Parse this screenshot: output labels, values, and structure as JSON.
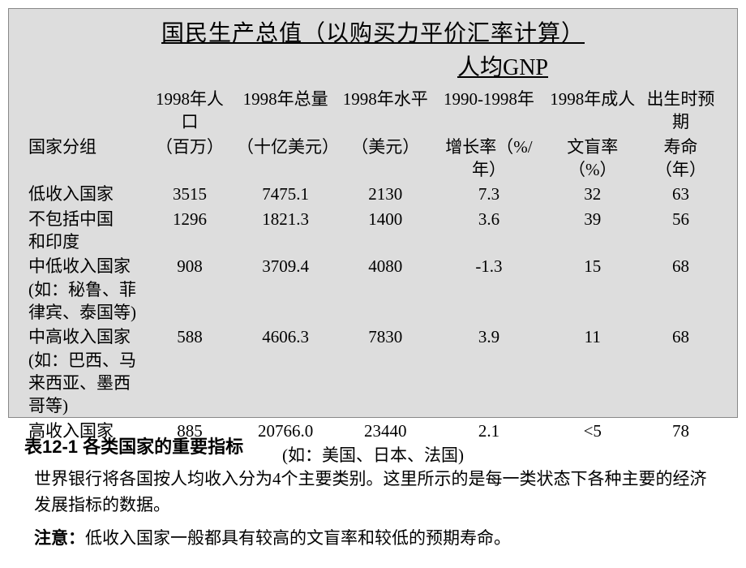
{
  "title": "国民生产总值（以购买力平价汇率计算）",
  "subtitle": "人均GNP",
  "table": {
    "header_row1": [
      "",
      "1998年人口",
      "1998年总量",
      "1998年水平",
      "1990-1998年",
      "1998年成人",
      "出生时预期"
    ],
    "header_row2": [
      "国家分组",
      "（百万）",
      "（十亿美元）",
      "（美元）",
      "增长率（%/年）",
      "文盲率（%）",
      "寿命（年）"
    ],
    "rows": [
      {
        "label": "低收入国家",
        "values": [
          "3515",
          "7475.1",
          "2130",
          "7.3",
          "32",
          "63"
        ]
      },
      {
        "label": "不包括中国\n和印度",
        "values": [
          "1296",
          "1821.3",
          "1400",
          "3.6",
          "39",
          "56"
        ]
      },
      {
        "label": "中低收入国家\n(如：秘鲁、菲\n律宾、泰国等)",
        "values": [
          "908",
          "3709.4",
          "4080",
          "-1.3",
          "15",
          "68"
        ]
      },
      {
        "label": "中高收入国家\n(如：巴西、马\n来西亚、墨西\n哥等)",
        "values": [
          "588",
          "4606.3",
          "7830",
          "3.9",
          "11",
          "68"
        ]
      }
    ],
    "last_row": {
      "label_full": "高收入国家",
      "label_extra": "(如：美国、日本、法国)",
      "values": [
        "885",
        "20766.0",
        "23440",
        "2.1",
        "<5",
        "78"
      ]
    }
  },
  "caption": {
    "number_label": "表12-1 各类国家的重要指标",
    "body": "世界银行将各国按人均收入分为4个主要类别。这里所示的是每一类状态下各种主要的经济发展指标的数据。",
    "note_prefix": "注意：",
    "note_text": "低收入国家一般都具有较高的文盲率和较低的预期寿命。"
  },
  "style": {
    "slide_bg": "#dddddd",
    "page_bg": "#ffffff",
    "text_color": "#000000",
    "title_fontsize": 28,
    "table_fontsize": 21,
    "caption_fontsize": 21,
    "caption_title_fontsize": 22
  }
}
